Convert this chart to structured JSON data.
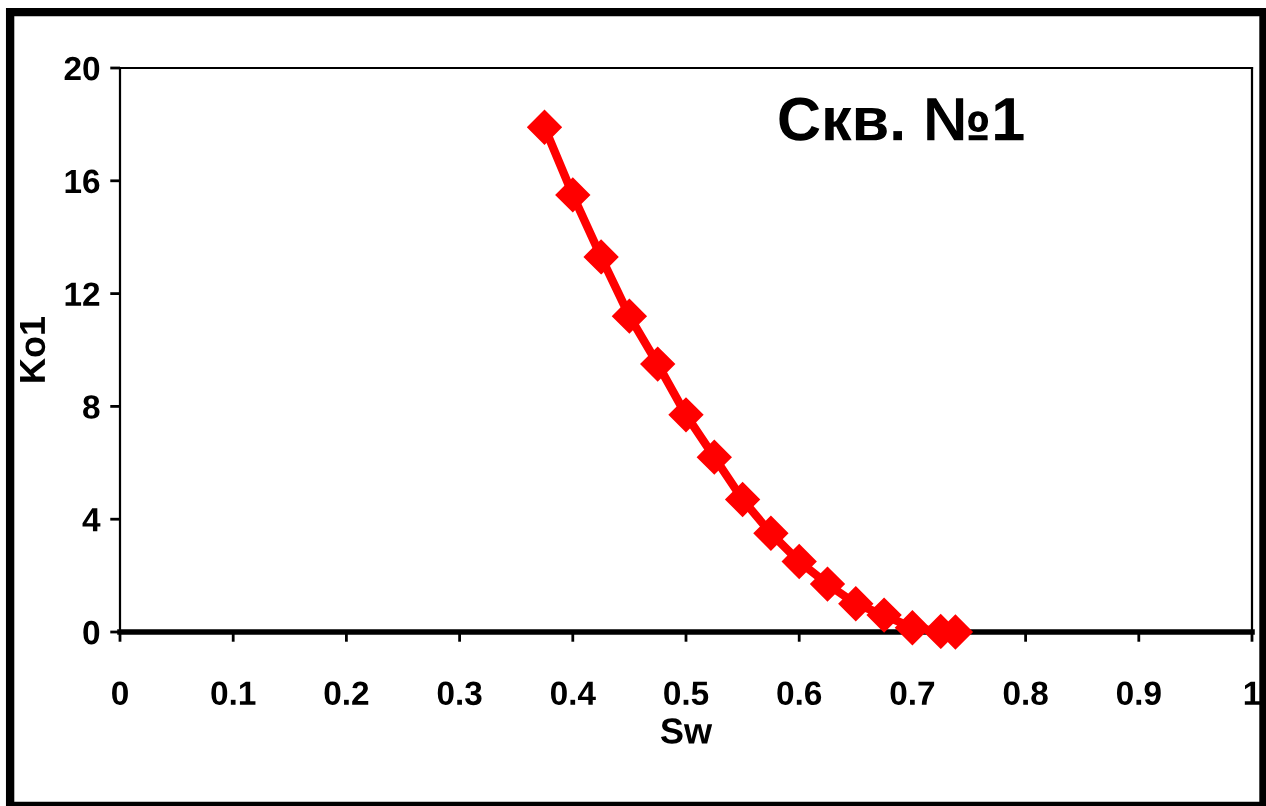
{
  "chart_data": {
    "type": "line",
    "title": "Скв. №1",
    "xlabel": "Sw",
    "ylabel": "Ko1",
    "x": [
      0.375,
      0.4,
      0.425,
      0.45,
      0.475,
      0.5,
      0.525,
      0.55,
      0.575,
      0.6,
      0.625,
      0.65,
      0.675,
      0.7,
      0.725,
      0.738
    ],
    "series": [
      {
        "color": "#ff0000",
        "values": [
          17.9,
          15.5,
          13.3,
          11.2,
          9.5,
          7.7,
          6.2,
          4.7,
          3.5,
          2.5,
          1.7,
          1.0,
          0.6,
          0.15,
          0.02,
          0
        ]
      }
    ],
    "xlim": [
      0,
      1
    ],
    "xticks": [
      0,
      0.1,
      0.2,
      0.3,
      0.4,
      0.5,
      0.6,
      0.7,
      0.8,
      0.9,
      1
    ],
    "ylim": [
      0,
      20
    ],
    "yticks": [
      0,
      4,
      8,
      12,
      16,
      20
    ],
    "marker": "diamond",
    "line_style": "solid",
    "grid": false,
    "legend": false
  }
}
